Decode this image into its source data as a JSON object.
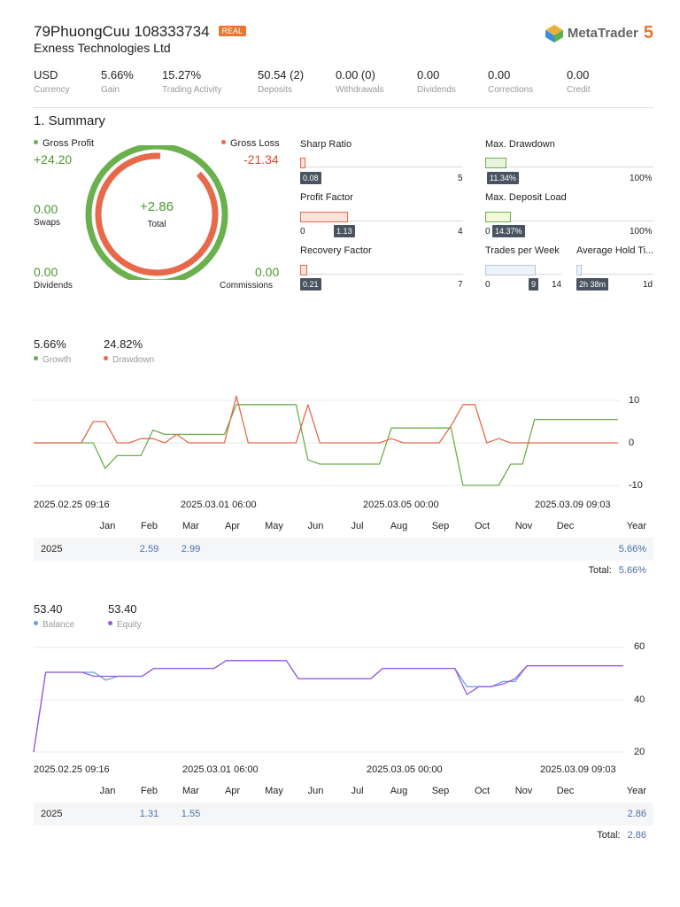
{
  "header": {
    "account": "79PhuongCuu 108333734",
    "badge": "REAL",
    "broker": "Exness Technologies Ltd",
    "logo_text": "MetaTrader",
    "logo_version": "5",
    "logo_icon": "metatrader-logo-icon"
  },
  "stats": [
    {
      "value": "USD",
      "label": "Currency"
    },
    {
      "value": "5.66%",
      "label": "Gain"
    },
    {
      "value": "15.27%",
      "label": "Trading Activity"
    },
    {
      "value": "50.54 (2)",
      "label": "Deposits"
    },
    {
      "value": "0.00 (0)",
      "label": "Withdrawals"
    },
    {
      "value": "0.00",
      "label": "Dividends"
    },
    {
      "value": "0.00",
      "label": "Corrections"
    },
    {
      "value": "0.00",
      "label": "Credit"
    }
  ],
  "summary": {
    "title": "1. Summary",
    "gross_profit_label": "Gross Profit",
    "gross_profit": "+24.20",
    "gross_loss_label": "Gross Loss",
    "gross_loss": "-21.34",
    "total_value": "+2.86",
    "total_label": "Total",
    "swaps_value": "0.00",
    "swaps_label": "Swaps",
    "dividends_value": "0.00",
    "dividends_label": "Dividends",
    "commissions_value": "0.00",
    "commissions_label": "Commissions",
    "colors": {
      "profit": "#6ab04c",
      "loss": "#e8694a"
    }
  },
  "indicators": {
    "sharp_ratio": {
      "title": "Sharp Ratio",
      "value": "0.08",
      "min": "",
      "max": "5",
      "fraction": 0.016
    },
    "profit_factor": {
      "title": "Profit Factor",
      "value": "1.13",
      "min": "0",
      "max": "4",
      "fraction": 0.2825
    },
    "recovery_factor": {
      "title": "Recovery Factor",
      "value": "0.21",
      "min": "",
      "max": "7",
      "fraction": 0.03
    },
    "max_drawdown": {
      "title": "Max. Drawdown",
      "value": "11.34%",
      "min": "",
      "max": "100%",
      "fraction": 0.1134
    },
    "max_deposit_load": {
      "title": "Max. Deposit Load",
      "value": "14.37%",
      "min": "0",
      "max": "100%",
      "fraction": 0.1437
    },
    "trades_per_week": {
      "title": "Trades per Week",
      "value": "9",
      "min": "0",
      "max": "14",
      "fraction": 0.643
    },
    "avg_hold_time": {
      "title": "Average Hold Ti...",
      "value": "2h 38m",
      "min": "",
      "max": "1d",
      "fraction": 0.02
    }
  },
  "growth": {
    "growth_value": "5.66%",
    "growth_label": "Growth",
    "drawdown_value": "24.82%",
    "drawdown_label": "Drawdown",
    "yticks": [
      "10",
      "0",
      "-10"
    ],
    "xticks": [
      "2025.02.25 09:16",
      "2025.03.01 06:00",
      "2025.03.05 00:00",
      "2025.03.09 09:03"
    ],
    "colors": {
      "growth": "#6ab04c",
      "drawdown": "#e8694a"
    },
    "months": [
      "Jan",
      "Feb",
      "Mar",
      "Apr",
      "May",
      "Jun",
      "Jul",
      "Aug",
      "Sep",
      "Oct",
      "Nov",
      "Dec"
    ],
    "year_header": "Year",
    "row_year": "2025",
    "row_values": [
      "",
      "2.59",
      "2.99",
      "",
      "",
      "",
      "",
      "",
      "",
      "",
      "",
      ""
    ],
    "row_total": "5.66%",
    "total_label": "Total:",
    "total_value": "5.66%"
  },
  "balance": {
    "balance_value": "53.40",
    "balance_label": "Balance",
    "equity_value": "53.40",
    "equity_label": "Equity",
    "yticks": [
      "60",
      "40",
      "20"
    ],
    "xticks": [
      "2025.02.25 09:16",
      "2025.03.01 06:00",
      "2025.03.05 00:00",
      "2025.03.09 09:03"
    ],
    "colors": {
      "balance": "#6b9ee8",
      "equity": "#9b59e0"
    },
    "months": [
      "Jan",
      "Feb",
      "Mar",
      "Apr",
      "May",
      "Jun",
      "Jul",
      "Aug",
      "Sep",
      "Oct",
      "Nov",
      "Dec"
    ],
    "year_header": "Year",
    "row_year": "2025",
    "row_values": [
      "",
      "1.31",
      "1.55",
      "",
      "",
      "",
      "",
      "",
      "",
      "",
      "",
      ""
    ],
    "row_total": "2.86",
    "total_label": "Total:",
    "total_value": "2.86"
  },
  "chart_data": [
    {
      "type": "line",
      "ylim": [
        -10,
        10
      ],
      "series": [
        {
          "name": "Growth",
          "values": [
            0,
            0,
            0,
            0,
            0,
            0,
            -6,
            -3,
            -3,
            -3,
            3,
            2,
            2,
            2,
            2,
            2,
            2,
            9,
            9,
            9,
            9,
            9,
            9,
            -4,
            -5,
            -5,
            -5,
            -5,
            -5,
            -5,
            3.5,
            3.5,
            3.5,
            3.5,
            3.5,
            3.5,
            -10,
            -10,
            -10,
            -10,
            -5,
            -5,
            5.5,
            5.5,
            5.5,
            5.5,
            5.5,
            5.5,
            5.5,
            5.5
          ]
        },
        {
          "name": "Drawdown",
          "values": [
            0,
            0,
            0,
            0,
            0,
            5,
            5,
            0,
            0,
            1,
            1,
            0,
            2,
            0,
            0,
            0,
            0,
            11,
            0,
            0,
            0,
            0,
            0,
            9,
            0,
            0,
            0,
            0,
            0,
            0,
            1,
            0,
            0,
            0,
            0,
            4,
            9,
            9,
            0,
            1,
            0,
            0,
            0,
            0,
            0,
            0,
            0,
            0,
            0,
            0
          ]
        }
      ]
    },
    {
      "type": "line",
      "ylim": [
        20,
        60
      ],
      "series": [
        {
          "name": "Balance",
          "values": [
            20,
            50.5,
            50.5,
            50.5,
            50.5,
            50.5,
            47.5,
            49,
            49,
            49,
            52,
            52,
            52,
            52,
            52,
            52,
            55,
            55,
            55,
            55,
            55,
            55,
            48,
            48,
            48,
            48,
            48,
            48,
            48,
            52,
            52,
            52,
            52,
            52,
            52,
            52,
            45,
            45,
            45,
            47,
            47,
            53,
            53,
            53,
            53,
            53,
            53,
            53,
            53,
            53
          ]
        },
        {
          "name": "Equity",
          "values": [
            20,
            50.5,
            50.5,
            50.5,
            50.5,
            49,
            49,
            49,
            49,
            49,
            52,
            52,
            52,
            52,
            52,
            52,
            55,
            55,
            55,
            55,
            55,
            55,
            48,
            48,
            48,
            48,
            48,
            48,
            48,
            52,
            52,
            52,
            52,
            52,
            52,
            52,
            42,
            45,
            45,
            46,
            48,
            53,
            53,
            53,
            53,
            53,
            53,
            53,
            53,
            53
          ]
        }
      ]
    }
  ]
}
